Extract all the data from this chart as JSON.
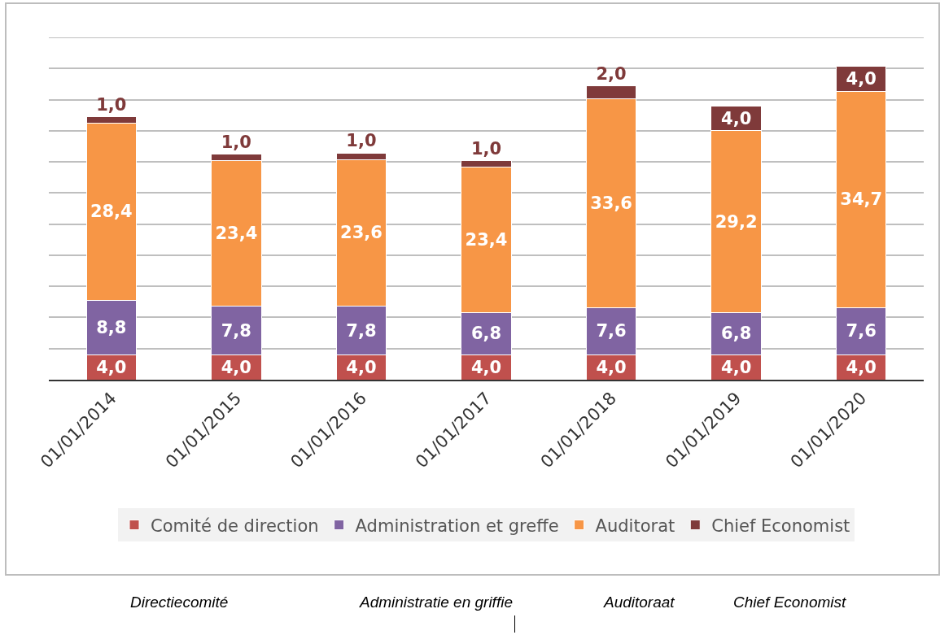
{
  "chart_data": {
    "type": "bar",
    "stacked": true,
    "categories": [
      "01/01/2014",
      "01/01/2015",
      "01/01/2016",
      "01/01/2017",
      "01/01/2018",
      "01/01/2019",
      "01/01/2020"
    ],
    "series": [
      {
        "name": "Comité de direction",
        "color": "#c0504d",
        "values": [
          4.0,
          4.0,
          4.0,
          4.0,
          4.0,
          4.0,
          4.0
        ],
        "value_labels": [
          "4,0",
          "4,0",
          "4,0",
          "4,0",
          "4,0",
          "4,0",
          "4,0"
        ]
      },
      {
        "name": "Administration et greffe",
        "color": "#8064a2",
        "values": [
          8.8,
          7.8,
          7.8,
          6.8,
          7.6,
          6.8,
          7.6
        ],
        "value_labels": [
          "8,8",
          "7,8",
          "7,8",
          "6,8",
          "7,6",
          "6,8",
          "7,6"
        ]
      },
      {
        "name": "Auditorat",
        "color": "#f79646",
        "values": [
          28.4,
          23.4,
          23.6,
          23.4,
          33.6,
          29.2,
          34.7
        ],
        "value_labels": [
          "28,4",
          "23,4",
          "23,6",
          "23,4",
          "33,6",
          "29,2",
          "34,7"
        ]
      },
      {
        "name": "Chief Economist",
        "color": "#7f3a3a",
        "values": [
          1.0,
          1.0,
          1.0,
          1.0,
          2.0,
          4.0,
          4.0
        ],
        "value_labels": [
          "1,0",
          "1,0",
          "1,0",
          "1,0",
          "2,0",
          "4,0",
          "4,0"
        ]
      }
    ],
    "ylim": [
      0,
      55
    ],
    "yticks": [
      {
        "value": 0,
        "label": null
      },
      {
        "value": 5,
        "label": null
      },
      {
        "value": 10,
        "label": null
      },
      {
        "value": 15,
        "label": null
      },
      {
        "value": 20,
        "label": null
      },
      {
        "value": 25,
        "label": null
      },
      {
        "value": 30,
        "label": null
      },
      {
        "value": 35,
        "label": null
      },
      {
        "value": 40,
        "label": null
      },
      {
        "value": 45,
        "label": null
      },
      {
        "value": 50,
        "label": null
      }
    ],
    "tick_labels": "x",
    "grid": "y",
    "legend": "bottom",
    "annotations": [
      "Directiecomité",
      "Administratie en griffie",
      "Auditoraat",
      "Chief Economist"
    ]
  }
}
